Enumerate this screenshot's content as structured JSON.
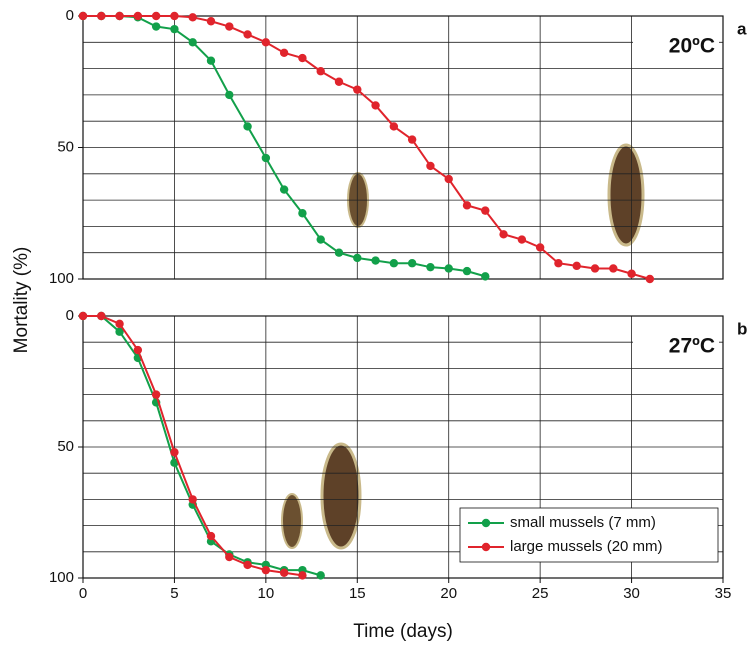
{
  "axis_labels": {
    "x": "Time (days)",
    "y": "Mortality (%)"
  },
  "chart_data": [
    {
      "type": "line",
      "panel": "a",
      "annotation": "20ºC",
      "xlim": [
        0,
        35
      ],
      "xticks": [
        0,
        5,
        10,
        15,
        20,
        25,
        30,
        35
      ],
      "show_xtick_labels": false,
      "ylim": [
        100,
        0
      ],
      "yticks": [
        0,
        50,
        100
      ],
      "y_grid": [
        0,
        10,
        20,
        30,
        40,
        50,
        60,
        70,
        80,
        90,
        100
      ],
      "grid": true,
      "series": [
        {
          "name": "small mussels (7 mm)",
          "color": "#12a04a",
          "x": [
            0,
            1,
            2,
            3,
            4,
            5,
            6,
            7,
            8,
            9,
            10,
            11,
            12,
            13,
            14,
            15,
            16,
            17,
            18,
            19,
            20,
            21,
            22
          ],
          "values": [
            0,
            0,
            0,
            0.5,
            4,
            5,
            10,
            17,
            30,
            42,
            54,
            66,
            75,
            85,
            90,
            92,
            93,
            94,
            94,
            95.5,
            96,
            97,
            99
          ]
        },
        {
          "name": "large mussels (20 mm)",
          "color": "#e0242c",
          "x": [
            0,
            1,
            2,
            3,
            4,
            5,
            6,
            7,
            8,
            9,
            10,
            11,
            12,
            13,
            14,
            15,
            16,
            17,
            18,
            19,
            20,
            21,
            22,
            23,
            24,
            25,
            26,
            27,
            28,
            29,
            30,
            31
          ],
          "values": [
            0,
            0,
            0,
            0,
            0,
            0,
            0.5,
            2,
            4,
            7,
            10,
            14,
            16,
            21,
            25,
            28,
            34,
            42,
            47,
            57,
            62,
            72,
            74,
            83,
            85,
            88,
            94,
            95,
            96,
            96,
            98,
            100
          ]
        }
      ]
    },
    {
      "type": "line",
      "panel": "b",
      "annotation": "27ºC",
      "xlim": [
        0,
        35
      ],
      "xticks": [
        0,
        5,
        10,
        15,
        20,
        25,
        30,
        35
      ],
      "show_xtick_labels": true,
      "ylim": [
        100,
        0
      ],
      "yticks": [
        0,
        50,
        100
      ],
      "y_grid": [
        0,
        10,
        20,
        30,
        40,
        50,
        60,
        70,
        80,
        90,
        100
      ],
      "grid": true,
      "legend": "lower right",
      "series": [
        {
          "name": "small mussels (7 mm)",
          "color": "#12a04a",
          "x": [
            0,
            1,
            2,
            3,
            4,
            5,
            6,
            7,
            8,
            9,
            10,
            11,
            12,
            13
          ],
          "values": [
            0,
            0,
            6,
            16,
            33,
            56,
            72,
            86,
            91,
            94,
            95,
            97,
            97,
            99
          ]
        },
        {
          "name": "large mussels (20 mm)",
          "color": "#e0242c",
          "x": [
            0,
            1,
            2,
            3,
            4,
            5,
            6,
            7,
            8,
            9,
            10,
            11,
            12
          ],
          "values": [
            0,
            0,
            3,
            13,
            30,
            52,
            70,
            84,
            92,
            95,
            97,
            98,
            99
          ]
        }
      ]
    }
  ]
}
